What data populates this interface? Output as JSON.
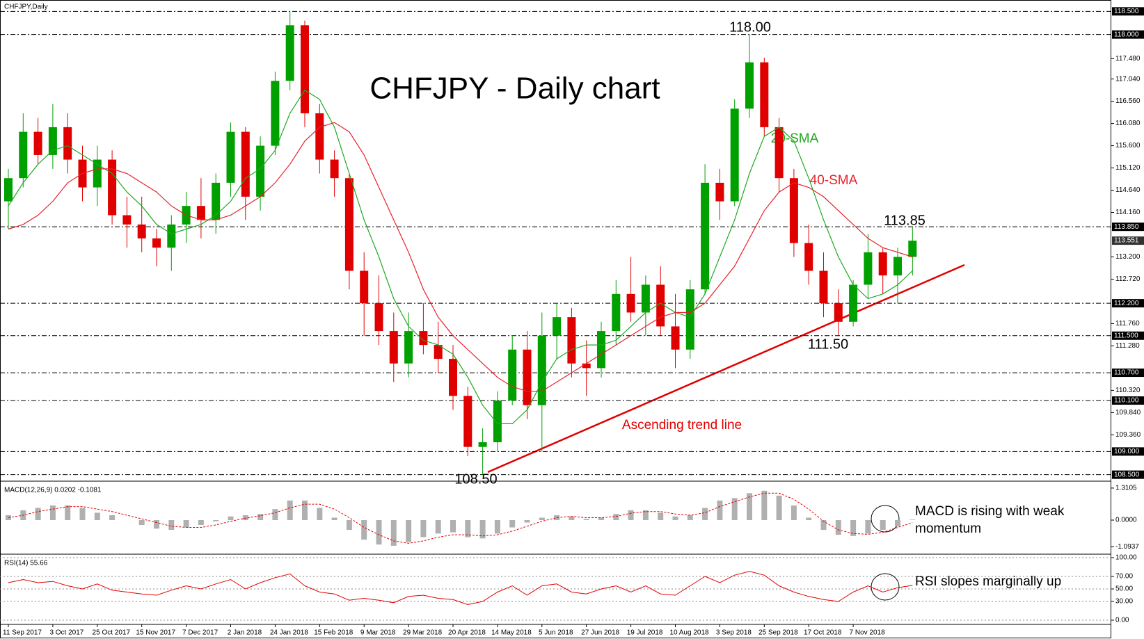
{
  "header": "CHFJPY,Daily",
  "chart_data": [
    {
      "type": "candlestick",
      "title": "CHFJPY - Daily chart",
      "categories": [
        "11 Sep 2017",
        null,
        null,
        "3 Oct 2017",
        null,
        null,
        "25 Oct 2017",
        null,
        null,
        "15 Nov 2017",
        null,
        null,
        "7 Dec 2017",
        null,
        null,
        "2 Jan 2018",
        null,
        null,
        "24 Jan 2018",
        null,
        null,
        "15 Feb 2018",
        null,
        null,
        "9 Mar 2018",
        null,
        null,
        "29 Mar 2018",
        null,
        null,
        "20 Apr 2018",
        null,
        null,
        "14 May 2018",
        null,
        null,
        "5 Jun 2018",
        null,
        null,
        "27 Jun 2018",
        null,
        null,
        "19 Jul 2018",
        null,
        null,
        "10 Aug 2018",
        null,
        null,
        "3 Sep 2018",
        null,
        null,
        "25 Sep 2018",
        null,
        null,
        "17 Oct 2018",
        null,
        null,
        "7 Nov 2018",
        null,
        null,
        null,
        null
      ],
      "open": [
        114.4,
        114.9,
        115.9,
        115.4,
        116.0,
        115.3,
        114.7,
        115.3,
        114.1,
        113.9,
        113.6,
        113.4,
        113.9,
        114.3,
        114.0,
        114.8,
        115.9,
        114.5,
        115.6,
        117.0,
        118.2,
        116.3,
        115.3,
        114.9,
        112.9,
        112.2,
        111.6,
        110.9,
        111.6,
        111.3,
        111.0,
        110.2,
        109.1,
        109.2,
        110.1,
        111.2,
        110.0,
        111.5,
        111.9,
        110.9,
        110.8,
        111.6,
        112.4,
        112.0,
        112.6,
        111.7,
        111.2,
        112.5,
        114.8,
        114.4,
        116.4,
        117.4,
        116.0,
        114.9,
        113.5,
        112.9,
        112.2,
        111.8,
        112.6,
        113.3,
        112.8,
        113.2
      ],
      "high": [
        115.1,
        116.3,
        116.2,
        116.5,
        116.3,
        115.6,
        115.6,
        115.5,
        114.5,
        114.5,
        113.8,
        114.1,
        114.6,
        114.9,
        115.0,
        116.1,
        116.0,
        115.8,
        117.2,
        118.5,
        118.3,
        116.5,
        115.5,
        115.0,
        113.3,
        112.8,
        112.0,
        112.0,
        112.2,
        111.8,
        111.3,
        110.4,
        109.5,
        110.3,
        111.5,
        111.6,
        112.0,
        112.2,
        112.1,
        111.4,
        111.8,
        112.7,
        113.2,
        112.8,
        113.0,
        112.4,
        112.7,
        115.2,
        115.1,
        116.6,
        118.0,
        117.5,
        116.2,
        115.1,
        113.9,
        113.3,
        112.5,
        112.7,
        113.7,
        113.4,
        113.4,
        113.85
      ],
      "low": [
        113.8,
        114.7,
        115.2,
        115.1,
        115.0,
        114.4,
        114.3,
        113.9,
        113.4,
        113.3,
        113.0,
        112.9,
        113.5,
        113.6,
        113.7,
        114.5,
        114.0,
        114.2,
        115.4,
        116.8,
        116.0,
        115.0,
        114.5,
        112.5,
        111.5,
        111.3,
        110.5,
        110.6,
        111.1,
        110.7,
        109.9,
        108.9,
        108.5,
        109.0,
        110.0,
        109.7,
        109.0,
        111.0,
        110.6,
        110.2,
        110.6,
        111.3,
        111.8,
        111.5,
        111.5,
        110.8,
        111.0,
        112.4,
        114.0,
        114.3,
        116.2,
        115.8,
        114.6,
        113.2,
        112.6,
        111.9,
        111.5,
        111.7,
        112.3,
        112.4,
        112.2,
        112.8
      ],
      "close": [
        114.9,
        115.9,
        115.4,
        116.0,
        115.3,
        114.7,
        115.3,
        114.1,
        113.9,
        113.6,
        113.4,
        113.9,
        114.3,
        114.0,
        114.8,
        115.9,
        114.5,
        115.6,
        117.0,
        118.2,
        116.3,
        115.3,
        114.9,
        112.9,
        112.2,
        111.6,
        110.9,
        111.6,
        111.3,
        111.0,
        110.2,
        109.1,
        109.2,
        110.1,
        111.2,
        110.0,
        111.5,
        111.9,
        110.9,
        110.8,
        111.6,
        112.4,
        112.0,
        112.6,
        111.7,
        111.2,
        112.5,
        114.8,
        114.4,
        116.4,
        117.4,
        116.0,
        114.9,
        113.5,
        112.9,
        112.2,
        111.8,
        112.6,
        113.3,
        112.8,
        113.2,
        113.551
      ],
      "up_color": "#00a000",
      "down_color": "#e00000",
      "series": [
        {
          "name": "20-SMA",
          "color": "#1fa81f",
          "values": [
            114.3,
            114.8,
            115.2,
            115.5,
            115.6,
            115.4,
            115.2,
            115.0,
            114.6,
            114.3,
            113.9,
            113.7,
            113.8,
            113.9,
            114.1,
            114.4,
            114.9,
            115.1,
            115.5,
            116.3,
            116.8,
            116.6,
            116.0,
            115.0,
            114.0,
            113.2,
            112.3,
            111.7,
            111.4,
            111.3,
            111.1,
            110.6,
            110.0,
            109.6,
            109.6,
            109.9,
            110.5,
            111.0,
            111.2,
            111.3,
            111.3,
            111.4,
            111.7,
            112.0,
            112.2,
            112.0,
            111.9,
            112.4,
            113.2,
            114.0,
            115.0,
            115.8,
            116.0,
            115.7,
            114.9,
            114.0,
            113.2,
            112.6,
            112.3,
            112.4,
            112.6,
            112.9
          ]
        },
        {
          "name": "40-SMA",
          "color": "#e8202a",
          "values": [
            113.8,
            113.9,
            114.1,
            114.4,
            114.8,
            115.0,
            115.1,
            115.1,
            115.0,
            114.8,
            114.6,
            114.3,
            114.1,
            114.0,
            114.0,
            114.1,
            114.3,
            114.5,
            114.8,
            115.2,
            115.7,
            116.0,
            116.1,
            115.9,
            115.4,
            114.7,
            114.0,
            113.3,
            112.5,
            111.9,
            111.5,
            111.2,
            110.9,
            110.6,
            110.4,
            110.3,
            110.3,
            110.5,
            110.7,
            110.9,
            111.1,
            111.3,
            111.5,
            111.7,
            111.9,
            112.0,
            112.0,
            112.2,
            112.6,
            113.0,
            113.6,
            114.2,
            114.6,
            114.8,
            114.7,
            114.5,
            114.2,
            113.9,
            113.6,
            113.4,
            113.3,
            113.2
          ]
        }
      ],
      "ylim": [
        108.39,
        118.67
      ],
      "yticks": [
        {
          "value": 117.48,
          "label": "117.480"
        },
        {
          "value": 117.04,
          "label": "117.040"
        },
        {
          "value": 116.56,
          "label": "116.560"
        },
        {
          "value": 116.08,
          "label": "116.080"
        },
        {
          "value": 115.6,
          "label": "115.600"
        },
        {
          "value": 115.12,
          "label": "115.120"
        },
        {
          "value": 114.64,
          "label": "114.640"
        },
        {
          "value": 114.16,
          "label": "114.160"
        },
        {
          "value": 113.2,
          "label": "113.200"
        },
        {
          "value": 112.72,
          "label": "112.720"
        },
        {
          "value": 111.76,
          "label": "111.760"
        },
        {
          "value": 111.28,
          "label": "111.280"
        },
        {
          "value": 110.32,
          "label": "110.320"
        },
        {
          "value": 109.84,
          "label": "109.840"
        },
        {
          "value": 109.36,
          "label": "109.360"
        }
      ],
      "levels": [
        {
          "value": 118.5,
          "label": "118.500"
        },
        {
          "value": 118,
          "label": "118.000"
        },
        {
          "value": 113.85,
          "label": "113.850"
        },
        {
          "value": 112.2,
          "label": "112.200"
        },
        {
          "value": 111.5,
          "label": "111.500"
        },
        {
          "value": 110.7,
          "label": "110.700"
        },
        {
          "value": 110.1,
          "label": "110.100"
        },
        {
          "value": 109,
          "label": "109.000"
        },
        {
          "value": 108.5,
          "label": "108.500"
        }
      ],
      "last_price": {
        "value": 113.551,
        "label": "113.551"
      },
      "annotations": {
        "peak": "118.00",
        "resistance": "113.85",
        "support": "111.50",
        "low": "108.50",
        "trend_line": "Ascending trend line"
      }
    },
    {
      "type": "macd",
      "title": "MACD(12,26,9) 0.0202 -0.1081",
      "values": [
        0.2,
        0.4,
        0.5,
        0.6,
        0.6,
        0.5,
        0.3,
        0.2,
        0.0,
        -0.2,
        -0.35,
        -0.4,
        -0.3,
        -0.2,
        -0.05,
        0.15,
        0.2,
        0.25,
        0.45,
        0.8,
        0.8,
        0.5,
        0.1,
        -0.4,
        -0.8,
        -1.0,
        -1.05,
        -0.9,
        -0.7,
        -0.55,
        -0.5,
        -0.7,
        -0.75,
        -0.55,
        -0.3,
        -0.1,
        0.1,
        0.2,
        0.15,
        0.05,
        0.1,
        0.25,
        0.4,
        0.4,
        0.3,
        0.15,
        0.2,
        0.5,
        0.8,
        0.9,
        1.1,
        1.2,
        1.0,
        0.6,
        0.1,
        -0.4,
        -0.6,
        -0.65,
        -0.55,
        -0.4,
        -0.25,
        0.02
      ],
      "color": "#b0b0b0",
      "signal": [
        0.1,
        0.2,
        0.35,
        0.45,
        0.55,
        0.55,
        0.45,
        0.35,
        0.2,
        0.05,
        -0.1,
        -0.25,
        -0.3,
        -0.3,
        -0.2,
        -0.05,
        0.08,
        0.18,
        0.3,
        0.5,
        0.65,
        0.65,
        0.45,
        0.1,
        -0.3,
        -0.6,
        -0.85,
        -0.95,
        -0.85,
        -0.7,
        -0.6,
        -0.6,
        -0.65,
        -0.6,
        -0.45,
        -0.25,
        -0.05,
        0.1,
        0.15,
        0.1,
        0.1,
        0.15,
        0.28,
        0.35,
        0.35,
        0.25,
        0.2,
        0.3,
        0.55,
        0.75,
        0.95,
        1.1,
        1.1,
        0.85,
        0.45,
        -0.05,
        -0.4,
        -0.55,
        -0.58,
        -0.5,
        -0.3,
        -0.1081
      ],
      "signal_color": "#e00000",
      "ylim": [
        -1.28,
        1.45
      ],
      "yticks": [
        {
          "value": 1.3105,
          "label": "1.3105"
        },
        {
          "value": 0,
          "label": "0.0000"
        },
        {
          "value": -1.0937,
          "label": "-1.0937"
        }
      ],
      "note": [
        "MACD is rising with weak",
        "momentum"
      ]
    },
    {
      "type": "rsi",
      "title": "RSI(14) 55.66",
      "values": [
        60,
        65,
        60,
        62,
        55,
        50,
        58,
        48,
        45,
        42,
        40,
        48,
        55,
        50,
        58,
        65,
        50,
        60,
        68,
        74,
        55,
        45,
        42,
        32,
        35,
        32,
        28,
        38,
        40,
        35,
        33,
        25,
        30,
        45,
        55,
        40,
        55,
        58,
        45,
        42,
        50,
        55,
        45,
        55,
        42,
        40,
        55,
        70,
        60,
        72,
        78,
        72,
        55,
        45,
        38,
        33,
        30,
        45,
        55,
        45,
        52,
        55.66
      ],
      "color": "#e00000",
      "ylim": [
        0,
        100
      ],
      "yticks": [
        {
          "value": 100,
          "label": "100.00"
        },
        {
          "value": 70,
          "label": "70.00"
        },
        {
          "value": 50,
          "label": "50.00"
        },
        {
          "value": 30,
          "label": "30.00"
        },
        {
          "value": 0,
          "label": "0.00"
        }
      ],
      "note": "RSI slopes marginally up"
    }
  ]
}
